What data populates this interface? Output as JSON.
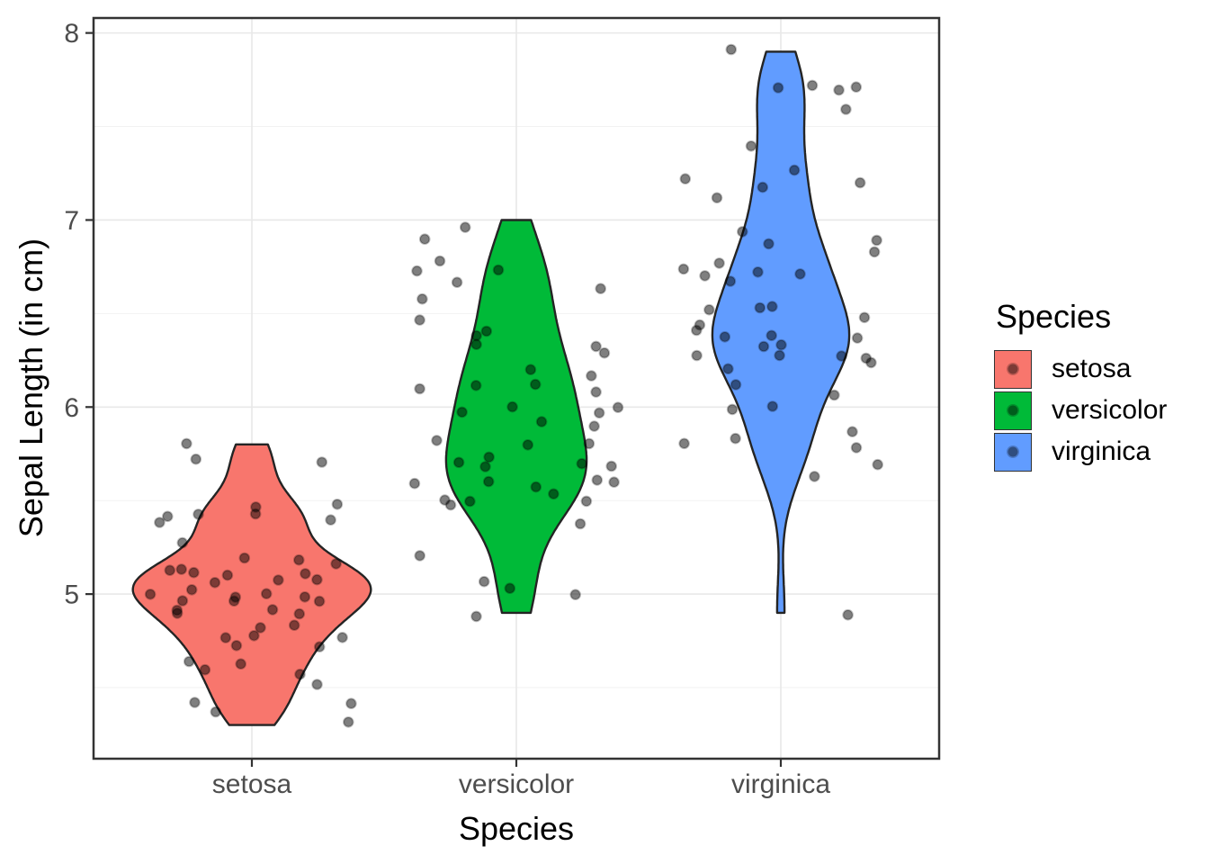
{
  "axes": {
    "x": {
      "label": "Species",
      "categories": [
        "setosa",
        "versicolor",
        "virginica"
      ]
    },
    "y": {
      "label": "Sepal Length (in cm)",
      "major_ticks": [
        5,
        6,
        7,
        8
      ],
      "minor_ticks": [
        4.5,
        5.5,
        6.5,
        7.5
      ],
      "range": [
        4.12,
        8.08
      ]
    }
  },
  "legend": {
    "title": "Species",
    "entries": [
      {
        "label": "setosa",
        "color": "#F8766D"
      },
      {
        "label": "versicolor",
        "color": "#00BA38"
      },
      {
        "label": "virginica",
        "color": "#619CFF"
      }
    ]
  },
  "chart_data": {
    "type": "violin",
    "title": "",
    "xlabel": "Species",
    "ylabel": "Sepal Length (in cm)",
    "ylim": [
      4.12,
      8.08
    ],
    "categories": [
      "setosa",
      "versicolor",
      "virginica"
    ],
    "violin_scale": "area",
    "trim": true,
    "overlay": "jittered-points",
    "legend_position": "right",
    "grid": true,
    "series": [
      {
        "name": "setosa",
        "color": "#F8766D",
        "values": [
          5.1,
          4.9,
          4.7,
          4.6,
          5.0,
          5.4,
          4.6,
          5.0,
          4.4,
          4.9,
          5.4,
          4.8,
          4.8,
          4.3,
          5.8,
          5.7,
          5.4,
          5.1,
          5.7,
          5.1,
          5.4,
          5.1,
          4.6,
          5.1,
          4.8,
          5.0,
          5.0,
          5.2,
          5.2,
          4.7,
          4.8,
          5.4,
          5.2,
          5.5,
          4.9,
          5.0,
          5.5,
          4.9,
          4.4,
          5.1,
          5.0,
          4.5,
          4.4,
          5.0,
          5.1,
          4.8,
          5.1,
          4.6,
          5.3,
          5.0
        ]
      },
      {
        "name": "versicolor",
        "color": "#00BA38",
        "values": [
          7.0,
          6.4,
          6.9,
          5.5,
          6.5,
          5.7,
          6.3,
          4.9,
          6.6,
          5.2,
          5.0,
          5.9,
          6.0,
          6.1,
          5.6,
          6.7,
          5.6,
          5.8,
          6.2,
          5.6,
          5.9,
          6.1,
          6.3,
          6.1,
          6.4,
          6.6,
          6.8,
          6.7,
          6.0,
          5.7,
          5.5,
          5.5,
          5.8,
          6.0,
          5.4,
          6.0,
          6.7,
          6.3,
          5.6,
          5.5,
          5.5,
          6.1,
          5.8,
          5.0,
          5.6,
          5.7,
          5.7,
          6.2,
          5.1,
          5.7
        ]
      },
      {
        "name": "virginica",
        "color": "#619CFF",
        "values": [
          6.3,
          5.8,
          7.1,
          6.3,
          6.5,
          7.6,
          4.9,
          7.3,
          6.7,
          7.2,
          6.5,
          6.4,
          6.8,
          5.7,
          5.8,
          6.4,
          6.5,
          7.7,
          7.7,
          6.0,
          6.9,
          5.6,
          7.7,
          6.3,
          6.7,
          7.2,
          6.2,
          6.1,
          6.4,
          7.2,
          7.4,
          7.9,
          6.4,
          6.3,
          6.1,
          7.7,
          6.3,
          6.4,
          6.0,
          6.9,
          6.7,
          6.9,
          5.8,
          6.8,
          6.7,
          6.7,
          6.3,
          6.5,
          6.2,
          5.9
        ]
      }
    ]
  },
  "style": {
    "background": "#FFFFFF",
    "panel_border": "#333333",
    "grid_major": "#E8E8E8",
    "grid_minor": "#F2F2F2",
    "tick_color": "#333333",
    "tick_text_color": "#4D4D4D",
    "violin_outline": "#242424",
    "point_color": "#000000",
    "point_alpha": 0.5
  }
}
